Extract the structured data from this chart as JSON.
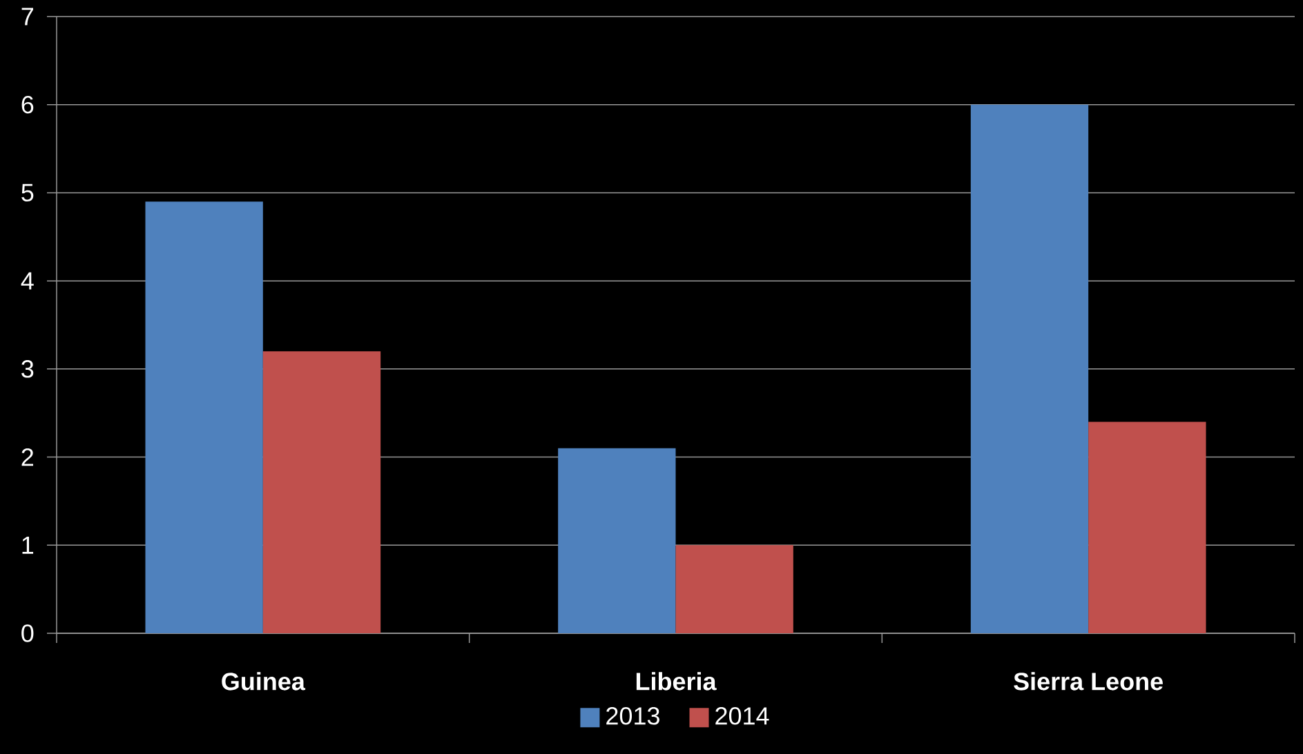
{
  "chart_data": {
    "type": "bar",
    "categories": [
      "Guinea",
      "Liberia",
      "Sierra Leone"
    ],
    "series": [
      {
        "name": "2013",
        "color": "#4f81bd",
        "values": [
          4.9,
          2.1,
          6.0
        ]
      },
      {
        "name": "2014",
        "color": "#c0504d",
        "values": [
          3.2,
          1.0,
          2.4
        ]
      }
    ],
    "ylim": [
      0,
      7
    ],
    "yticks": [
      0,
      1,
      2,
      3,
      4,
      5,
      6,
      7
    ],
    "grid": "y",
    "legend": "bottom"
  }
}
